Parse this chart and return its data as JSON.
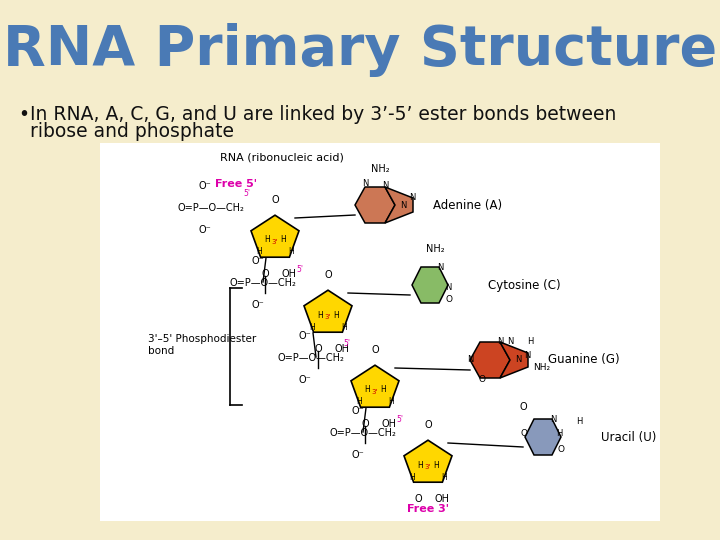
{
  "background_color": "#f5edcc",
  "title": "RNA Primary Structure",
  "title_color": "#4a7ab5",
  "title_fontsize": 40,
  "bullet_marker": "•",
  "bullet_line1": "In RNA, A, C, G, and U are linked by 3’-5’ ester bonds between",
  "bullet_line2": "ribose and phosphate",
  "bullet_fontsize": 13.5,
  "bullet_color": "#111111",
  "diag_bg": "#ffffff",
  "yellow": "#FFD700",
  "adenine_color": "#CC7755",
  "cytosine_color": "#88BB66",
  "guanine_color": "#CC4422",
  "uracil_color": "#8899BB",
  "magenta": "#DD00AA",
  "red3": "#CC0000",
  "black": "#000000"
}
